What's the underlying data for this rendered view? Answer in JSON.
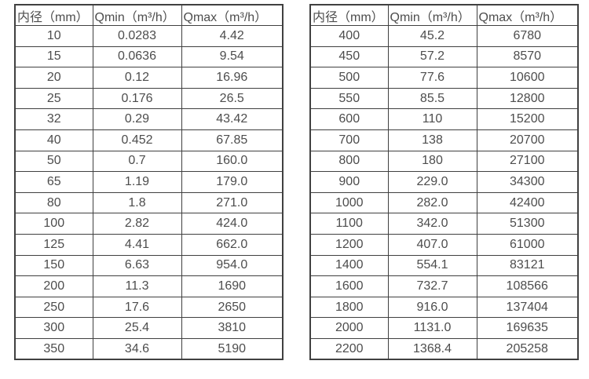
{
  "colors": {
    "background": "#ffffff",
    "border": "#404040",
    "text": "#4d4d4d"
  },
  "tables": [
    {
      "name": "flow-table-small-diameter",
      "headers": [
        "内径（mm）",
        "Qmin（m³/h）",
        "Qmax（m³/h）"
      ],
      "rows": [
        [
          "10",
          "0.0283",
          "4.42"
        ],
        [
          "15",
          "0.0636",
          "9.54"
        ],
        [
          "20",
          "0.12",
          "16.96"
        ],
        [
          "25",
          "0.176",
          "26.5"
        ],
        [
          "32",
          "0.29",
          "43.42"
        ],
        [
          "40",
          "0.452",
          "67.85"
        ],
        [
          "50",
          "0.7",
          "160.0"
        ],
        [
          "65",
          "1.19",
          "179.0"
        ],
        [
          "80",
          "1.8",
          "271.0"
        ],
        [
          "100",
          "2.82",
          "424.0"
        ],
        [
          "125",
          "4.41",
          "662.0"
        ],
        [
          "150",
          "6.63",
          "954.0"
        ],
        [
          "200",
          "11.3",
          "1690"
        ],
        [
          "250",
          "17.6",
          "2650"
        ],
        [
          "300",
          "25.4",
          "3810"
        ],
        [
          "350",
          "34.6",
          "5190"
        ]
      ]
    },
    {
      "name": "flow-table-large-diameter",
      "headers": [
        "内径（mm）",
        "Qmin（m³/h）",
        "Qmax（m³/h）"
      ],
      "rows": [
        [
          "400",
          "45.2",
          "6780"
        ],
        [
          "450",
          "57.2",
          "8570"
        ],
        [
          "500",
          "77.6",
          "10600"
        ],
        [
          "550",
          "85.5",
          "12800"
        ],
        [
          "600",
          "110",
          "15200"
        ],
        [
          "700",
          "138",
          "20700"
        ],
        [
          "800",
          "180",
          "27100"
        ],
        [
          "900",
          "229.0",
          "34300"
        ],
        [
          "1000",
          "282.0",
          "42400"
        ],
        [
          "1100",
          "342.0",
          "51300"
        ],
        [
          "1200",
          "407.0",
          "61000"
        ],
        [
          "1400",
          "554.1",
          "83121"
        ],
        [
          "1600",
          "732.7",
          "108566"
        ],
        [
          "1800",
          "916.0",
          "137404"
        ],
        [
          "2000",
          "1131.0",
          "169635"
        ],
        [
          "2200",
          "1368.4",
          "205258"
        ]
      ]
    }
  ]
}
